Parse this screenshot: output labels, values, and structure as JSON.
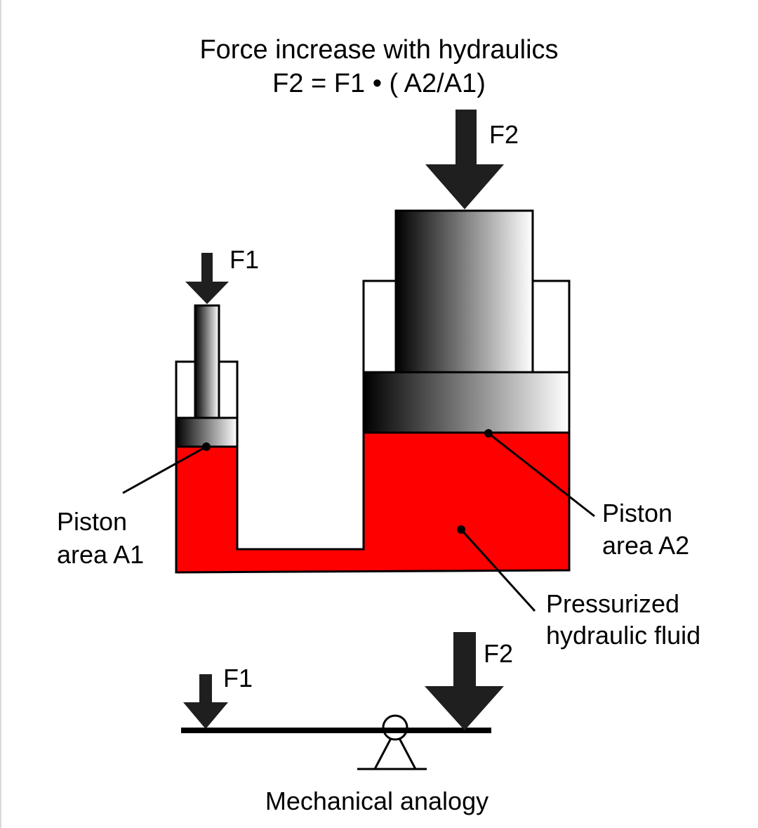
{
  "title": {
    "line1": "Force increase with hydraulics",
    "line2": "F2 = F1 • ( A2/A1)"
  },
  "labels": {
    "f1_press": "F1",
    "f2_press": "F2",
    "piston_a1_line1": "Piston",
    "piston_a1_line2": "area A1",
    "piston_a2_line1": "Piston",
    "piston_a2_line2": "area A2",
    "fluid_line1": "Pressurized",
    "fluid_line2": "hydraulic fluid",
    "f1_lever": "F1",
    "f2_lever": "F2",
    "caption": "Mechanical analogy"
  },
  "colors": {
    "fluid": "#ff0000",
    "arrow": "#1f1f1f",
    "outline": "#000000"
  }
}
